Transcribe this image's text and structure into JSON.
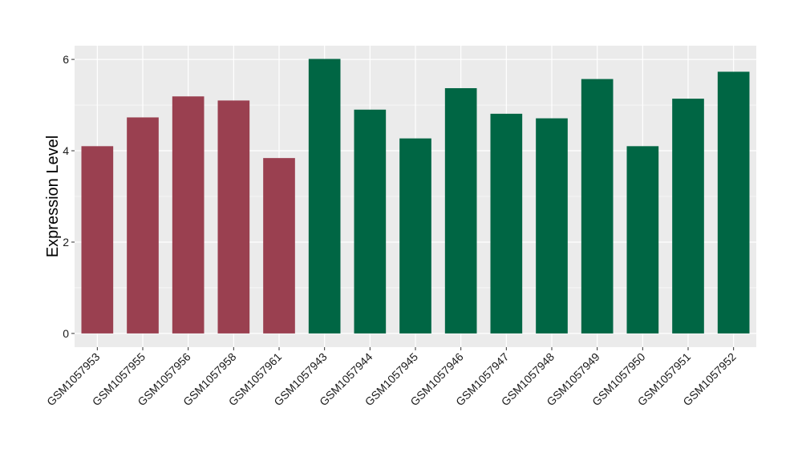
{
  "chart_data": {
    "type": "bar",
    "title": "",
    "xlabel": "",
    "ylabel": "Expression Level",
    "ylim": [
      -0.3,
      6.3
    ],
    "yticks": [
      0,
      2,
      4,
      6
    ],
    "grid": true,
    "legend": "none",
    "panel_background": "#ebebeb",
    "gridline_color": "#ffffff",
    "categories": [
      "GSM1057953",
      "GSM1057955",
      "GSM1057956",
      "GSM1057958",
      "GSM1057961",
      "GSM1057943",
      "GSM1057944",
      "GSM1057945",
      "GSM1057946",
      "GSM1057947",
      "GSM1057948",
      "GSM1057949",
      "GSM1057950",
      "GSM1057951",
      "GSM1057952"
    ],
    "values": [
      4.1,
      4.73,
      5.19,
      5.1,
      3.84,
      6.01,
      4.9,
      4.27,
      5.37,
      4.81,
      4.71,
      5.57,
      4.1,
      5.14,
      5.73
    ],
    "bar_colors": [
      "#9a4050",
      "#9a4050",
      "#9a4050",
      "#9a4050",
      "#9a4050",
      "#006644",
      "#006644",
      "#006644",
      "#006644",
      "#006644",
      "#006644",
      "#006644",
      "#006644",
      "#006644",
      "#006644"
    ]
  }
}
